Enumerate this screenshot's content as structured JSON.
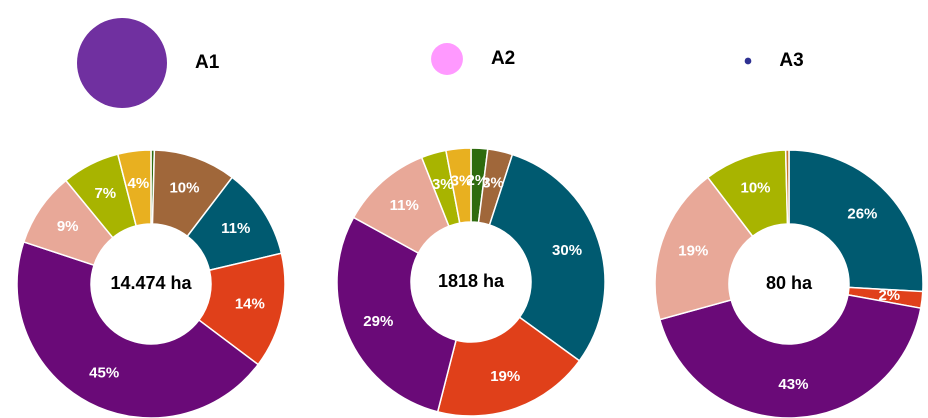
{
  "chart_data": [
    {
      "type": "pie",
      "name": "A1",
      "name_color": "#7030a0",
      "total": 14474,
      "total_label": "14.474 ha",
      "colors": [
        "#2e6b0e",
        "#a0673a",
        "#005a70",
        "#e0401a",
        "#6a0a78",
        "#e8a898",
        "#a8b400",
        "#e8b020"
      ],
      "values": [
        0.4,
        10,
        11,
        14,
        45,
        9,
        7,
        4
      ],
      "value_labels": [
        null,
        "10%",
        "11%",
        "14%",
        "45%",
        "9%",
        "7%",
        "4%"
      ]
    },
    {
      "type": "pie",
      "name": "A2",
      "name_color": "#ff99ff",
      "total": 1818,
      "total_label": "1818 ha",
      "colors": [
        "#2e6b0e",
        "#a0673a",
        "#005a70",
        "#e0401a",
        "#6a0a78",
        "#e8a898",
        "#a8b400",
        "#e8b020"
      ],
      "values": [
        2,
        3,
        30,
        19,
        29,
        11,
        3,
        3
      ],
      "value_labels": [
        "2%",
        "3%",
        "30%",
        "19%",
        "29%",
        "11%",
        "3%",
        "3%"
      ]
    },
    {
      "type": "pie",
      "name": "A3",
      "name_color": "#2e3192",
      "total": 80,
      "total_label": "80 ha",
      "colors": [
        "#005a70",
        "#e0401a",
        "#6a0a78",
        "#e8a898",
        "#a8b400",
        "#c8782a"
      ],
      "values": [
        26,
        2,
        43,
        19,
        10,
        0.4
      ],
      "value_labels": [
        "26%",
        "2%",
        "43%",
        "19%",
        "10%",
        null
      ]
    }
  ]
}
